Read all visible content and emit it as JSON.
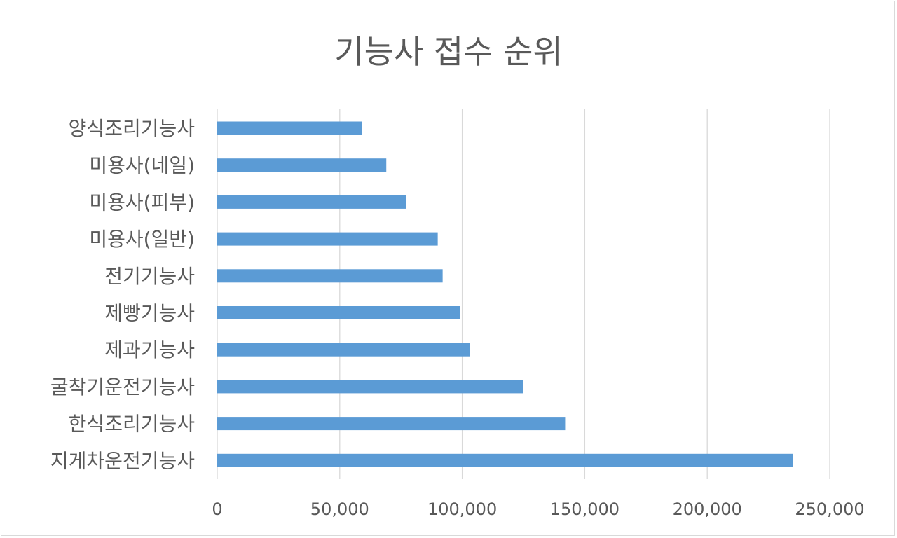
{
  "chart_data": {
    "type": "bar",
    "orientation": "horizontal",
    "title": "기능사 접수 순위",
    "categories": [
      "양식조리기능사",
      "미용사(네일)",
      "미용사(피부)",
      "미용사(일반)",
      "전기기능사",
      "제빵기능사",
      "제과기능사",
      "굴착기운전기능사",
      "한식조리기능사",
      "지게차운전기능사"
    ],
    "values": [
      59000,
      69000,
      77000,
      90000,
      92000,
      99000,
      103000,
      125000,
      142000,
      235000
    ],
    "x_ticks": [
      "0",
      "50,000",
      "100,000",
      "150,000",
      "200,000",
      "250,000"
    ],
    "xlim": [
      0,
      250000
    ],
    "grid": true,
    "legend": "none",
    "bar_color": "#5b9bd5",
    "grid_color": "#d9d9d9"
  }
}
